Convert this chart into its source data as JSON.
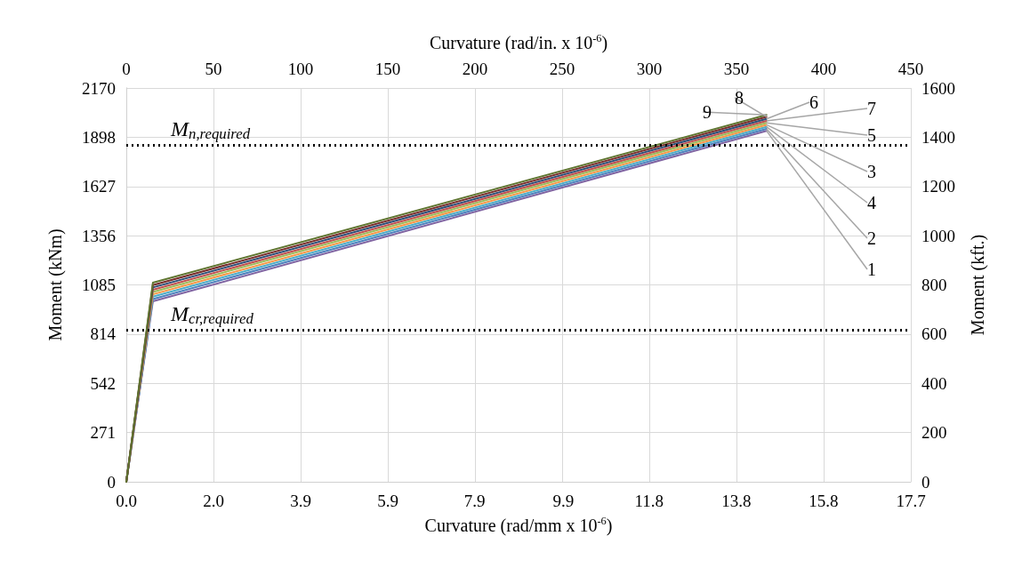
{
  "chart_data": {
    "type": "line",
    "xlabel": "Curvature (rad/mm x 10$^{-6}$)",
    "x2label": "Curvature (rad/in. x 10$^{-6}$)",
    "ylabel": "Moment (kNm)",
    "y2label": "Moment (kft.)",
    "xlim": [
      0,
      17.72
    ],
    "xticks": [
      {
        "value": 0,
        "label": "0.0"
      },
      {
        "value": 1.97,
        "label": "2.0"
      },
      {
        "value": 3.94,
        "label": "3.9"
      },
      {
        "value": 5.91,
        "label": "5.9"
      },
      {
        "value": 7.87,
        "label": "7.9"
      },
      {
        "value": 9.87,
        "label": "9.9"
      },
      {
        "value": 11.81,
        "label": "11.8"
      },
      {
        "value": 13.78,
        "label": "13.8"
      },
      {
        "value": 15.75,
        "label": "15.8"
      },
      {
        "value": 17.72,
        "label": "17.7"
      }
    ],
    "x2lim": [
      0,
      450
    ],
    "x2ticks": [
      0,
      50,
      100,
      150,
      200,
      250,
      300,
      350,
      400,
      450
    ],
    "ylim": [
      0,
      2170
    ],
    "yticks": [
      0,
      {
        "value": 271.25,
        "label": "271"
      },
      {
        "value": 542.5,
        "label": "542"
      },
      {
        "value": 813.75,
        "label": "814"
      },
      1085,
      {
        "value": 1356.25,
        "label": "1356"
      },
      {
        "value": 1627.5,
        "label": "1627"
      },
      {
        "value": 1898.4,
        "label": "1898"
      },
      2170
    ],
    "y2lim": [
      0,
      1600
    ],
    "y2ticks": [
      0,
      200,
      400,
      600,
      800,
      1000,
      1200,
      1400,
      1600
    ],
    "grid": true,
    "legend": false,
    "marker": "none",
    "line_style": "solid",
    "x": [
      0,
      0.6,
      14.46
    ],
    "series": [
      {
        "name": "1",
        "color": "#8064a2",
        "values": [
          0,
          994,
          1934
        ]
      },
      {
        "name": "2",
        "color": "#4f81bd",
        "values": [
          0,
          1007,
          1945
        ]
      },
      {
        "name": "4",
        "color": "#4bacc6",
        "values": [
          0,
          1020,
          1956
        ]
      },
      {
        "name": "3",
        "color": "#f79646",
        "values": [
          0,
          1033,
          1967
        ]
      },
      {
        "name": "5",
        "color": "#9bbb59",
        "values": [
          0,
          1046,
          1978
        ]
      },
      {
        "name": "7",
        "color": "#c0504d",
        "values": [
          0,
          1058,
          1989
        ]
      },
      {
        "name": "6",
        "color": "#2c4d75",
        "values": [
          0,
          1071,
          2000
        ]
      },
      {
        "name": "8",
        "color": "#772c2a",
        "values": [
          0,
          1084,
          2011
        ]
      },
      {
        "name": "9",
        "color": "#5f7530",
        "values": [
          0,
          1097,
          2022
        ]
      }
    ],
    "ref_lines": [
      {
        "axis": "y",
        "value": 1856,
        "label": "M$_{n,required}$",
        "color": "#000000",
        "line_style": "dotted"
      },
      {
        "axis": "y",
        "value": 837,
        "label": "M$_{cr,required}$",
        "color": "#000000",
        "line_style": "dotted"
      }
    ]
  }
}
